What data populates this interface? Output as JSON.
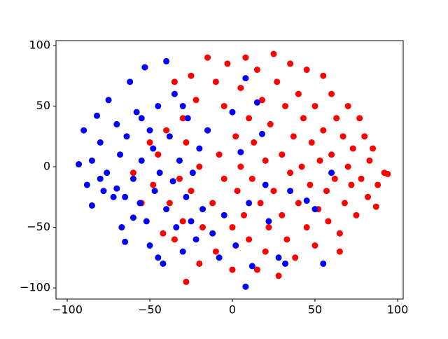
{
  "chart_data": {
    "type": "scatter",
    "xlim": [
      -106.8,
      103.4
    ],
    "ylim": [
      -109.2,
      104
    ],
    "xticks": [
      {
        "value": -100,
        "label": "−100"
      },
      {
        "value": -50,
        "label": "−50"
      },
      0,
      50,
      100
    ],
    "yticks": [
      {
        "value": -100,
        "label": "−100"
      },
      {
        "value": -50,
        "label": "−50"
      },
      0,
      50,
      100
    ],
    "series": [
      {
        "color": "#ff0000",
        "x": [
          -35,
          -32,
          -30,
          -28,
          -25,
          -25,
          -22,
          -20,
          -20,
          -18,
          -15,
          -15,
          -12,
          -10,
          -10,
          -8,
          -5,
          -5,
          -3,
          0,
          0,
          2,
          3,
          5,
          5,
          7,
          8,
          10,
          10,
          12,
          13,
          15,
          15,
          17,
          18,
          20,
          20,
          22,
          23,
          25,
          25,
          27,
          28,
          30,
          30,
          32,
          33,
          35,
          35,
          37,
          38,
          40,
          40,
          42,
          43,
          45,
          45,
          47,
          48,
          50,
          50,
          52,
          53,
          55,
          55,
          57,
          58,
          60,
          60,
          62,
          63,
          65,
          65,
          67,
          68,
          70,
          70,
          72,
          73,
          75,
          77,
          78,
          80,
          82,
          83,
          85,
          87,
          88,
          92,
          94,
          -40,
          -38,
          -45,
          -42,
          -48,
          -35,
          -30,
          -28,
          -60,
          -55,
          -50
        ],
        "y": [
          -60,
          -10,
          40,
          -95,
          75,
          -20,
          55,
          0,
          -80,
          -50,
          90,
          30,
          -30,
          70,
          -70,
          10,
          -10,
          50,
          85,
          -50,
          -85,
          25,
          -20,
          65,
          0,
          -40,
          90,
          -60,
          40,
          -10,
          20,
          80,
          -85,
          -30,
          55,
          5,
          -70,
          -50,
          35,
          93,
          -20,
          70,
          -90,
          10,
          -40,
          50,
          -60,
          85,
          -5,
          25,
          -75,
          60,
          -30,
          0,
          40,
          80,
          -50,
          -15,
          20,
          -65,
          50,
          -35,
          5,
          75,
          30,
          -20,
          -45,
          60,
          10,
          -10,
          40,
          -55,
          -70,
          25,
          -30,
          50,
          0,
          -15,
          15,
          -40,
          40,
          -10,
          25,
          -25,
          5,
          15,
          -33,
          -15,
          -5,
          -6,
          30,
          -30,
          10,
          -55,
          -15,
          70,
          -45,
          20,
          -5,
          -30,
          20
        ]
      },
      {
        "color": "#0000ff",
        "x": [
          -93,
          -90,
          -88,
          -85,
          -82,
          -80,
          -78,
          -76,
          -75,
          -72,
          -70,
          -68,
          -67,
          -65,
          -64,
          -62,
          -60,
          -58,
          -56,
          -55,
          -53,
          -52,
          -50,
          -50,
          -48,
          -47,
          -45,
          -44,
          -42,
          -40,
          -40,
          -38,
          -36,
          -35,
          -34,
          -32,
          -30,
          -30,
          -28,
          -27,
          -25,
          -24,
          -22,
          -20,
          -18,
          -15,
          -12,
          -8,
          -5,
          0,
          2,
          5,
          8,
          8,
          10,
          12,
          15,
          18,
          20,
          22,
          28,
          32,
          35,
          45,
          50,
          55,
          60,
          -80,
          -70,
          -60,
          -85,
          -45,
          -55,
          -65
        ],
        "y": [
          2,
          30,
          -15,
          -32,
          42,
          20,
          -20,
          -5,
          55,
          -25,
          35,
          10,
          -50,
          -62,
          25,
          70,
          -10,
          45,
          -30,
          5,
          82,
          -45,
          -65,
          30,
          15,
          -20,
          50,
          -5,
          -80,
          87,
          -35,
          25,
          -12,
          60,
          -50,
          5,
          -70,
          50,
          -25,
          40,
          -45,
          -5,
          -60,
          15,
          -35,
          30,
          -55,
          -75,
          -40,
          45,
          -65,
          12,
          73,
          -99,
          -30,
          -82,
          53,
          27,
          -15,
          -45,
          -75,
          -80,
          -20,
          -28,
          -35,
          -80,
          -5,
          -10,
          -18,
          -42,
          5,
          -75,
          40,
          -25
        ]
      }
    ]
  }
}
